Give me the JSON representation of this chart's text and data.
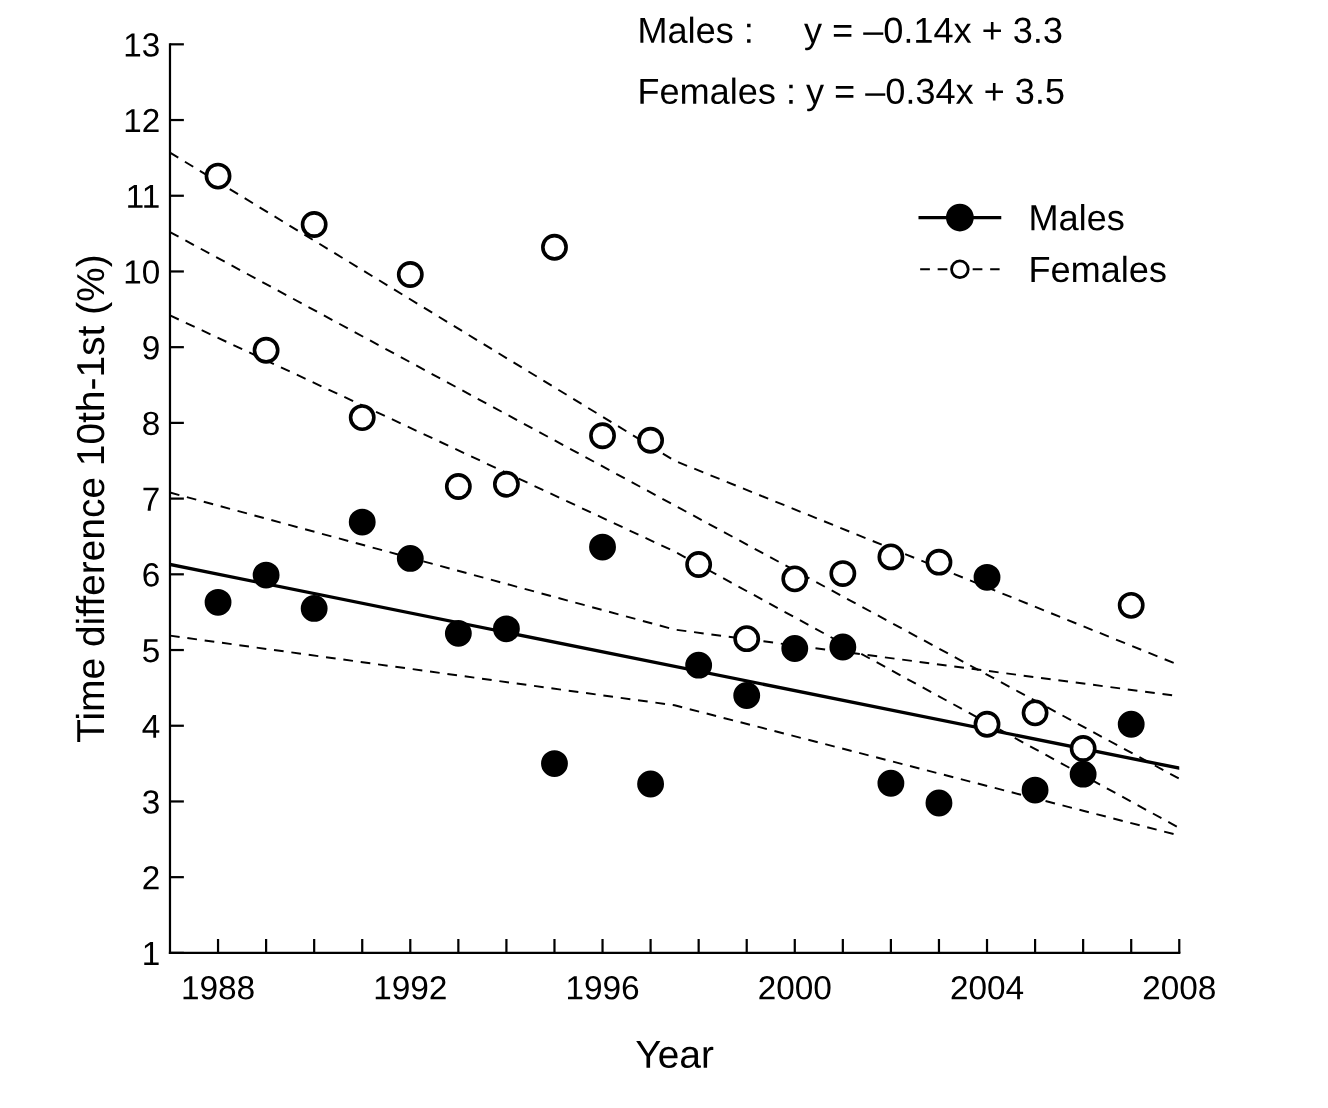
{
  "chart_data": {
    "type": "scatter",
    "xlabel": "Year",
    "ylabel": "Time difference 10th-1st (%)",
    "annotations": [
      "Males :     y = –0.14x + 3.3",
      "Females : y = –0.34x + 3.5"
    ],
    "x": [
      1988,
      1989,
      1990,
      1991,
      1992,
      1993,
      1994,
      1995,
      1996,
      1997,
      1998,
      1999,
      2000,
      2001,
      2002,
      2003,
      2004,
      2005,
      2006,
      2007
    ],
    "series": [
      {
        "name": "Males",
        "color": "#000000",
        "marker": "circle",
        "line_style": "solid",
        "values": [
          5.63,
          5.99,
          5.55,
          6.69,
          6.21,
          5.22,
          5.28,
          3.5,
          6.36,
          3.23,
          4.8,
          4.4,
          5.02,
          5.04,
          3.24,
          2.98,
          5.96,
          3.15,
          3.36,
          4.02
        ]
      },
      {
        "name": "Females",
        "color": "#ffffff",
        "marker": "circle",
        "line_style": "dashed",
        "values": [
          11.26,
          8.96,
          10.62,
          8.07,
          9.96,
          7.16,
          7.19,
          10.32,
          7.83,
          7.77,
          6.13,
          5.15,
          5.94,
          6.01,
          6.23,
          6.16,
          4.02,
          4.17,
          3.7,
          5.59
        ]
      },
      {
        "type": "line",
        "color": "#000000",
        "line_style": "solid",
        "x": [
          1987,
          2008
        ],
        "values": [
          6.13,
          3.44
        ]
      },
      {
        "type": "line",
        "color": "#000000",
        "line_style": "dashed",
        "x": [
          1987,
          1997.5,
          2008
        ],
        "values": [
          7.08,
          5.27,
          4.39
        ]
      },
      {
        "type": "line",
        "color": "#000000",
        "line_style": "dashed",
        "x": [
          1987,
          1997.5,
          2008
        ],
        "values": [
          5.19,
          4.27,
          2.55
        ]
      },
      {
        "type": "line",
        "color": "#000000",
        "line_style": "dashed",
        "x": [
          1987,
          2008
        ],
        "values": [
          10.52,
          3.3
        ]
      },
      {
        "type": "line",
        "color": "#000000",
        "line_style": "dashed",
        "x": [
          1987,
          1997.5,
          2008
        ],
        "values": [
          11.57,
          7.5,
          4.8
        ]
      },
      {
        "type": "line",
        "color": "#000000",
        "line_style": "dashed",
        "x": [
          1987,
          1997.5,
          2008
        ],
        "values": [
          9.42,
          6.3,
          2.65
        ]
      }
    ],
    "xlim": [
      1987,
      2008
    ],
    "ylim": [
      1,
      13
    ],
    "xticks": [
      1988,
      {
        "value": 1989,
        "label": null
      },
      {
        "value": 1990,
        "label": null
      },
      {
        "value": 1991,
        "label": null
      },
      1992,
      {
        "value": 1993,
        "label": null
      },
      {
        "value": 1994,
        "label": null
      },
      {
        "value": 1995,
        "label": null
      },
      1996,
      {
        "value": 1997,
        "label": null
      },
      {
        "value": 1998,
        "label": null
      },
      {
        "value": 1999,
        "label": null
      },
      2000,
      {
        "value": 2001,
        "label": null
      },
      {
        "value": 2002,
        "label": null
      },
      {
        "value": 2003,
        "label": null
      },
      2004,
      {
        "value": 2005,
        "label": null
      },
      {
        "value": 2006,
        "label": null
      },
      {
        "value": 2007,
        "label": null
      },
      2008
    ],
    "yticks": [
      1,
      2,
      3,
      4,
      5,
      6,
      7,
      8,
      9,
      10,
      11,
      12,
      13
    ],
    "legend": "top right",
    "grid": false
  }
}
